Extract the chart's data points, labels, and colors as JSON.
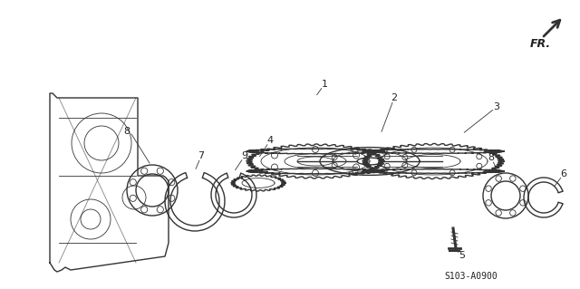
{
  "bg_color": "#ffffff",
  "diagram_code": "S103-A0900",
  "fr_label": "FR.",
  "line_color": "#333333",
  "label_color": "#222222",
  "lw_main": 1.0,
  "lw_thin": 0.6,
  "lfs": 8
}
